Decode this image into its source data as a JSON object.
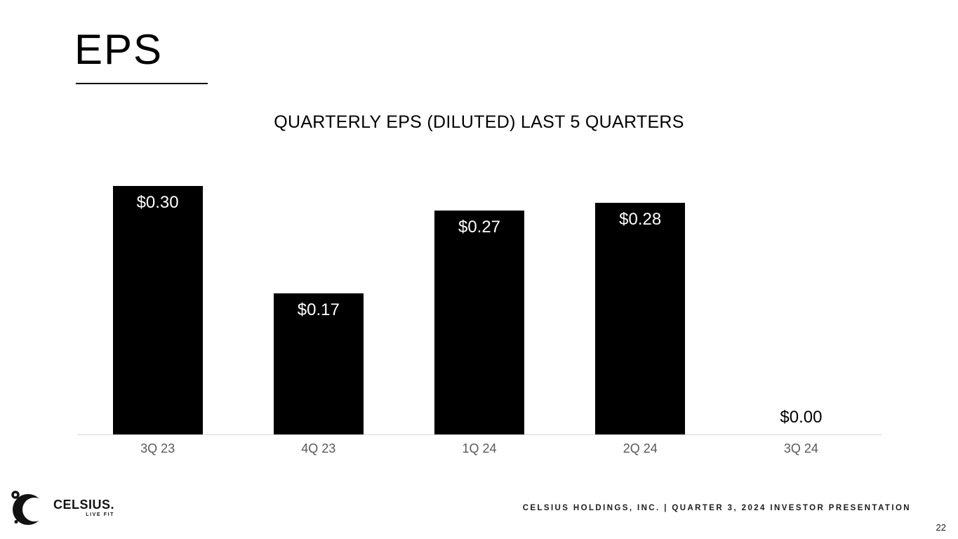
{
  "slide": {
    "title": "EPS",
    "footer": "CELSIUS HOLDINGS, INC. | QUARTER 3, 2024 INVESTOR PRESENTATION",
    "page_number": "22"
  },
  "logo": {
    "brand": "CELSIUS.",
    "tagline": "LIVE FIT"
  },
  "chart_data": {
    "type": "bar",
    "title": "QUARTERLY EPS (DILUTED) LAST 5 QUARTERS",
    "categories": [
      "3Q 23",
      "4Q 23",
      "1Q 24",
      "2Q 24",
      "3Q 24"
    ],
    "values": [
      0.3,
      0.17,
      0.27,
      0.28,
      0.0
    ],
    "labels": [
      "$0.30",
      "$0.17",
      "$0.27",
      "$0.28",
      "$0.00"
    ],
    "xlabel": "",
    "ylabel": "",
    "ylim": [
      0,
      0.32
    ],
    "grid": false,
    "legend": false,
    "bar_color": "#000000",
    "inside_label_color": "#ffffff",
    "outside_label_color": "#000000",
    "axis_line_color": "#d9d9d9",
    "axis_label_color": "#595959"
  }
}
